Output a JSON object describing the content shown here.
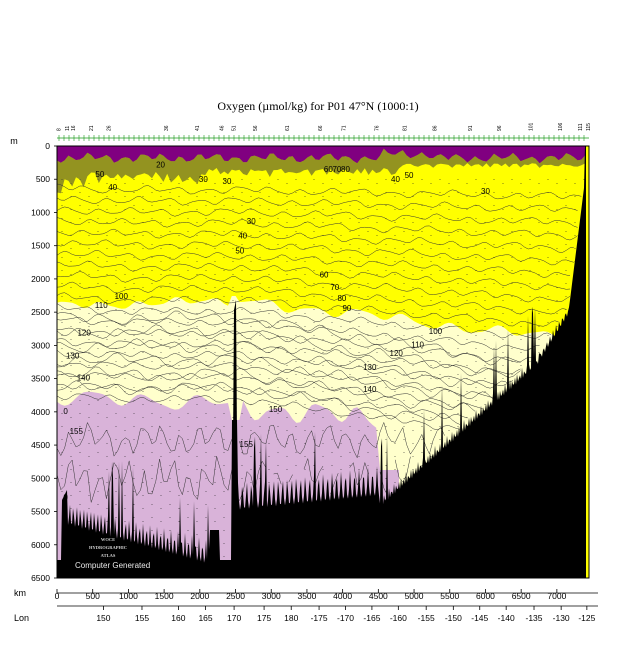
{
  "chart_data": {
    "type": "contour-section",
    "title": "Oxygen (µmol/kg) for P01 47°N (1000:1)",
    "y_axis_label": "m",
    "x_axis_label": "km",
    "lon_axis_label": "Lon",
    "ylim": [
      0,
      6500
    ],
    "xlim": [
      0,
      7450
    ],
    "depth_ticks": [
      0,
      500,
      1000,
      1500,
      2000,
      2500,
      3000,
      3500,
      4000,
      4500,
      5000,
      5500,
      6000,
      6500
    ],
    "km_ticks": [
      0,
      500,
      1000,
      1500,
      2000,
      2500,
      3000,
      3500,
      4000,
      4500,
      5000,
      5500,
      6000,
      6500,
      7000
    ],
    "lon_ticks": [
      {
        "label": "150",
        "km": 650
      },
      {
        "label": "155",
        "km": 1190
      },
      {
        "label": "160",
        "km": 1700
      },
      {
        "label": "165",
        "km": 2080
      },
      {
        "label": "170",
        "km": 2480
      },
      {
        "label": "175",
        "km": 2900
      },
      {
        "label": "180",
        "km": 3280
      },
      {
        "label": "-175",
        "km": 3670
      },
      {
        "label": "-170",
        "km": 4040
      },
      {
        "label": "-165",
        "km": 4410
      },
      {
        "label": "-160",
        "km": 4780
      },
      {
        "label": "-155",
        "km": 5170
      },
      {
        "label": "-150",
        "km": 5550
      },
      {
        "label": "-145",
        "km": 5920
      },
      {
        "label": "-140",
        "km": 6290
      },
      {
        "label": "-135",
        "km": 6680
      },
      {
        "label": "-130",
        "km": 7060
      },
      {
        "label": "-125",
        "km": 7420
      }
    ],
    "station_labels": [
      {
        "label": "8",
        "km": 30
      },
      {
        "label": "11",
        "km": 150
      },
      {
        "label": "16",
        "km": 230
      },
      {
        "label": "21",
        "km": 480
      },
      {
        "label": "26",
        "km": 730
      },
      {
        "label": "36",
        "km": 1530
      },
      {
        "label": "41",
        "km": 1970
      },
      {
        "label": "46",
        "km": 2310
      },
      {
        "label": "51",
        "km": 2480
      },
      {
        "label": "56",
        "km": 2780
      },
      {
        "label": "61",
        "km": 3230
      },
      {
        "label": "66",
        "km": 3690
      },
      {
        "label": "71",
        "km": 4020
      },
      {
        "label": "76",
        "km": 4480
      },
      {
        "label": "81",
        "km": 4870
      },
      {
        "label": "86",
        "km": 5290
      },
      {
        "label": "91",
        "km": 5790
      },
      {
        "label": "96",
        "km": 6200
      },
      {
        "label": "101",
        "km": 6640
      },
      {
        "label": "106",
        "km": 7050
      },
      {
        "label": "111",
        "km": 7330
      },
      {
        "label": "115",
        "km": 7440
      }
    ],
    "contour_levels": [
      20,
      30,
      40,
      50,
      60,
      70,
      80,
      90,
      100,
      110,
      120,
      130,
      140,
      150,
      155
    ],
    "color_bands": [
      {
        "range": "< 20",
        "color": "#800080"
      },
      {
        "range": "20 - 100",
        "color": "#ffff00"
      },
      {
        "range": "100 - 150",
        "color": "#ffffcc"
      },
      {
        "range": "> 150",
        "color": "#d9b3d9"
      },
      {
        "range": "bathymetry",
        "color": "#000000"
      }
    ],
    "contour_labels": [
      {
        "text": "20",
        "km": 1450,
        "depth": 320
      },
      {
        "text": "30",
        "km": 2050,
        "depth": 540
      },
      {
        "text": "30",
        "km": 2380,
        "depth": 570
      },
      {
        "text": "30",
        "km": 6000,
        "depth": 720
      },
      {
        "text": "50",
        "km": 600,
        "depth": 470
      },
      {
        "text": "40",
        "km": 780,
        "depth": 660
      },
      {
        "text": "50",
        "km": 4930,
        "depth": 480
      },
      {
        "text": "40",
        "km": 4740,
        "depth": 540
      },
      {
        "text": "60",
        "km": 3800,
        "depth": 390
      },
      {
        "text": "70",
        "km": 3920,
        "depth": 390
      },
      {
        "text": "80",
        "km": 4040,
        "depth": 390
      },
      {
        "text": "30",
        "km": 2720,
        "depth": 1170
      },
      {
        "text": "40",
        "km": 2600,
        "depth": 1390
      },
      {
        "text": "50",
        "km": 2560,
        "depth": 1620
      },
      {
        "text": "60",
        "km": 3740,
        "depth": 1980
      },
      {
        "text": "70",
        "km": 3890,
        "depth": 2170
      },
      {
        "text": "80",
        "km": 3990,
        "depth": 2330
      },
      {
        "text": "90",
        "km": 4060,
        "depth": 2480
      },
      {
        "text": "100",
        "km": 900,
        "depth": 2300
      },
      {
        "text": "110",
        "km": 620,
        "depth": 2440
      },
      {
        "text": "120",
        "km": 380,
        "depth": 2850
      },
      {
        "text": "130",
        "km": 220,
        "depth": 3200
      },
      {
        "text": "140",
        "km": 370,
        "depth": 3530
      },
      {
        "text": "100",
        "km": 5300,
        "depth": 2830
      },
      {
        "text": "110",
        "km": 5050,
        "depth": 3030
      },
      {
        "text": "120",
        "km": 4750,
        "depth": 3160
      },
      {
        "text": "130",
        "km": 4380,
        "depth": 3370
      },
      {
        "text": "140",
        "km": 4380,
        "depth": 3700
      },
      {
        "text": "150",
        "km": 3060,
        "depth": 4000
      },
      {
        "text": "155",
        "km": 2650,
        "depth": 4530
      },
      {
        "text": "155",
        "km": 270,
        "depth": 4330
      },
      {
        "text": "0",
        "km": 120,
        "depth": 4030
      },
      {
        "text": "0",
        "km": 120,
        "depth": 5330
      }
    ],
    "contour_label_color": "#000000"
  },
  "logo": {
    "lines": [
      "WOCE",
      "HYDROGRAPHIC",
      "ATLAS"
    ],
    "caption": "Computer Generated"
  }
}
